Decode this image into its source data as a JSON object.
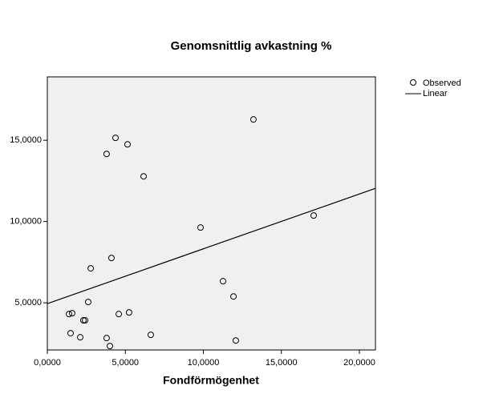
{
  "chart_data": {
    "type": "scatter",
    "title": "Genomsnittlig avkastning %",
    "xlabel": "Fondförmögenhet",
    "series": [
      {
        "name": "Observed",
        "color": "#000000",
        "x": [
          13.21,
          4.37,
          5.14,
          3.8,
          6.17,
          17.07,
          9.82,
          4.11,
          2.78,
          11.26,
          11.93,
          2.62,
          1.39,
          1.59,
          4.58,
          5.24,
          2.31,
          2.42,
          1.49,
          6.63,
          2.11,
          3.8,
          4.01,
          12.08
        ],
        "values": [
          16.28,
          15.15,
          14.75,
          14.16,
          12.78,
          10.37,
          9.63,
          7.76,
          7.12,
          6.33,
          5.39,
          5.05,
          4.31,
          4.36,
          4.31,
          4.41,
          3.92,
          3.92,
          3.13,
          3.03,
          2.88,
          2.83,
          2.34,
          2.68
        ]
      },
      {
        "name": "Linear",
        "color": "#000000",
        "x": [
          0,
          21.03
        ],
        "values": [
          4.95,
          12.04
        ]
      }
    ],
    "xlim": [
      0,
      21.03
    ],
    "ylim": [
      2.1,
      18.9
    ],
    "xticks": [
      {
        "value": 0,
        "label": "0,0000"
      },
      {
        "value": 5,
        "label": "5,0000"
      },
      {
        "value": 10,
        "label": "10,0000"
      },
      {
        "value": 15,
        "label": "15,0000"
      },
      {
        "value": 20,
        "label": "20,0000"
      }
    ],
    "yticks": [
      {
        "value": 5,
        "label": "5,0000"
      },
      {
        "value": 10,
        "label": "10,0000"
      },
      {
        "value": 15,
        "label": "15,0000"
      }
    ],
    "grid": false,
    "plot_background": "#f0f0f0"
  }
}
